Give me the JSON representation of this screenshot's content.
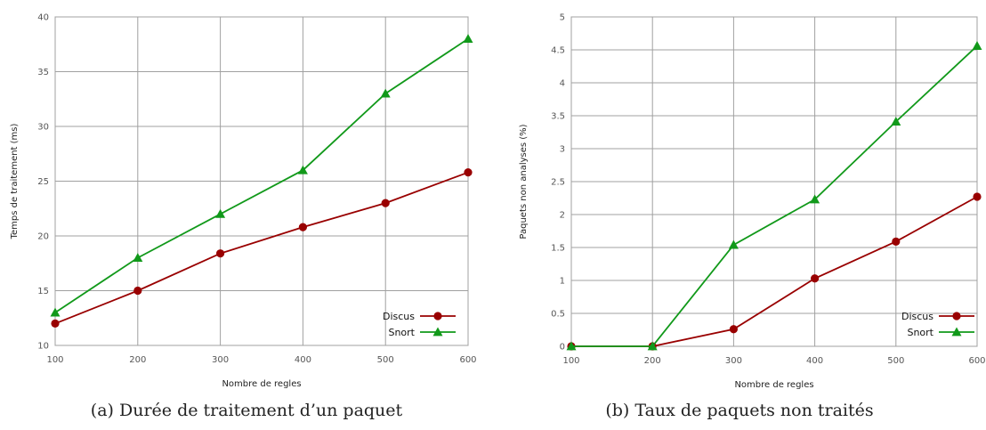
{
  "colors": {
    "discus": "#990000",
    "snort": "#11991a",
    "grid": "#a0a0a0",
    "frame": "#999999"
  },
  "chart_data": [
    {
      "type": "line",
      "caption": "(a) Durée de traitement d’un paquet",
      "xlabel": "Nombre de regles",
      "ylabel": "Temps de traitement (ms)",
      "x": [
        100,
        200,
        300,
        400,
        500,
        600
      ],
      "xlim": [
        100,
        600
      ],
      "ylim": [
        10,
        40
      ],
      "xticks": [
        "100",
        "200",
        "300",
        "400",
        "500",
        "600"
      ],
      "yticks": [
        "10",
        "15",
        "20",
        "25",
        "30",
        "35",
        "40"
      ],
      "grid": true,
      "legend_position": "bottom-right",
      "series": [
        {
          "name": "Discus",
          "marker": "circle",
          "color": "#990000",
          "values": [
            12,
            15,
            18.4,
            20.8,
            23,
            25.8
          ]
        },
        {
          "name": "Snort",
          "marker": "triangle",
          "color": "#11991a",
          "values": [
            13,
            18,
            22,
            26,
            33,
            38
          ]
        }
      ]
    },
    {
      "type": "line",
      "caption": "(b) Taux de paquets non traités",
      "xlabel": "Nombre de regles",
      "ylabel": "Paquets non analyses (%)",
      "x": [
        100,
        200,
        300,
        400,
        500,
        600
      ],
      "xlim": [
        100,
        600
      ],
      "ylim": [
        0,
        5
      ],
      "xticks": [
        "100",
        "200",
        "300",
        "400",
        "500",
        "600"
      ],
      "yticks": [
        "0",
        "0.5",
        "1",
        "1.5",
        "2",
        "2.5",
        "3",
        "3.5",
        "4",
        "4.5",
        "5"
      ],
      "grid": true,
      "legend_position": "bottom-right",
      "series": [
        {
          "name": "Discus",
          "marker": "circle",
          "color": "#990000",
          "values": [
            0,
            0,
            0.26,
            1.03,
            1.59,
            2.27
          ]
        },
        {
          "name": "Snort",
          "marker": "triangle",
          "color": "#11991a",
          "values": [
            0,
            0,
            1.54,
            2.23,
            3.41,
            4.56
          ]
        }
      ]
    }
  ]
}
